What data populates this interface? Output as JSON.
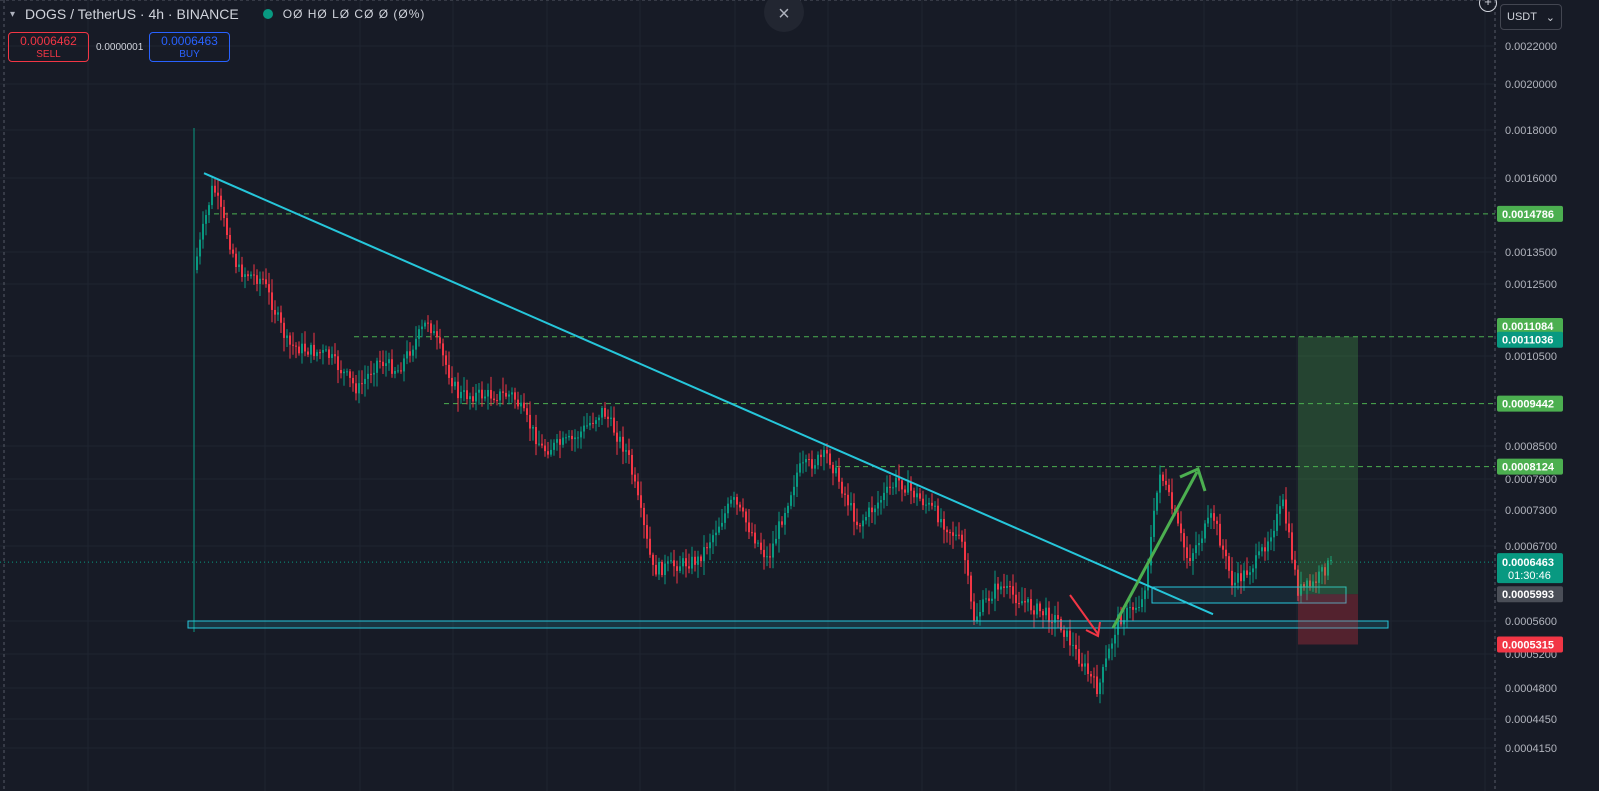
{
  "header": {
    "symbol": "DOGS / TetherUS · 4h · BINANCE",
    "ohlc": "OØ HØ LØ CØ Ø (Ø%)",
    "sell_price": "0.0006462",
    "sell_label": "SELL",
    "spread": "0.0000001",
    "buy_price": "0.0006463",
    "buy_label": "BUY",
    "currency": "USDT",
    "close_glyph": "×",
    "plus_glyph": "+"
  },
  "chart_data": {
    "type": "candlestick",
    "ylim": [
      0.00041,
      0.00225
    ],
    "y_ticks": [
      {
        "label": "0.0022000",
        "v": 0.0022
      },
      {
        "label": "0.0020000",
        "v": 0.002
      },
      {
        "label": "0.0018000",
        "v": 0.0018
      },
      {
        "label": "0.0016000",
        "v": 0.0016
      },
      {
        "label": "0.0013500",
        "v": 0.00135
      },
      {
        "label": "0.0012500",
        "v": 0.00125
      },
      {
        "label": "0.0010500",
        "v": 0.00105
      },
      {
        "label": "0.0008500",
        "v": 0.00085
      },
      {
        "label": "0.0007900",
        "v": 0.00079
      },
      {
        "label": "0.0007300",
        "v": 0.00073
      },
      {
        "label": "0.0006700",
        "v": 0.00067
      },
      {
        "label": "0.0005600",
        "v": 0.00056
      },
      {
        "label": "0.0005200",
        "v": 0.00052
      },
      {
        "label": "0.0004800",
        "v": 0.00048
      },
      {
        "label": "0.0004450",
        "v": 0.000445
      },
      {
        "label": "0.0004150",
        "v": 0.000415
      }
    ],
    "price_labels": [
      {
        "label": "0.0014786",
        "v": 0.0014786,
        "color": "#4caf50"
      },
      {
        "label": "0.0011084",
        "v": 0.0011084,
        "color": "#4caf50"
      },
      {
        "label": "0.0011036",
        "v": 0.0011036,
        "color": "#089981"
      },
      {
        "label": "0.0009442",
        "v": 0.0009442,
        "color": "#4caf50"
      },
      {
        "label": "0.0008124",
        "v": 0.0008124,
        "color": "#4caf50"
      },
      {
        "label": "0.0005993",
        "v": 0.0005993,
        "color": "#4a4e57"
      },
      {
        "label": "0.0005315",
        "v": 0.0005315,
        "color": "#f23645"
      }
    ],
    "current_price": {
      "label": "0.0006463",
      "countdown": "01:30:46",
      "v": 0.0006463,
      "color": "#089981"
    },
    "horizontal_levels": [
      0.0014786,
      0.0011036,
      0.0009442,
      0.0008124
    ],
    "start_price": 0.00135,
    "trend_start": 0.00162,
    "trend_end": 0.00057,
    "colors": {
      "up": "#089981",
      "down": "#f23645",
      "trend": "#26c6da",
      "level": "#4caf50",
      "box": "#26c6da",
      "arrow_up": "#4caf50",
      "arrow_down": "#f23645"
    }
  }
}
